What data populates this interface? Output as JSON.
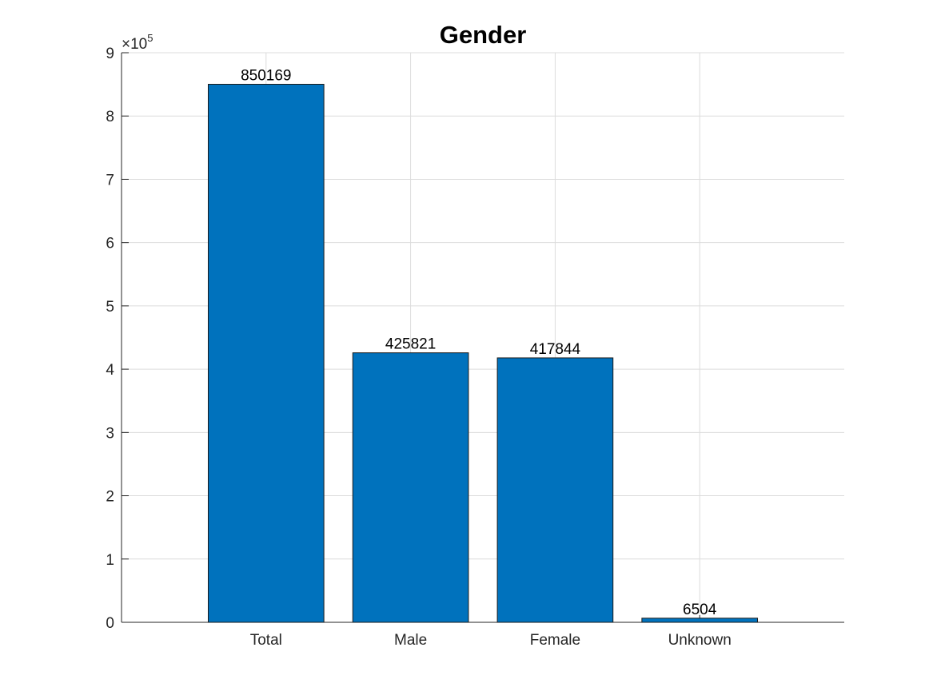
{
  "chart_data": {
    "type": "bar",
    "title": "Gender",
    "categories": [
      "Total",
      "Male",
      "Female",
      "Unknown"
    ],
    "values": [
      850169,
      425821,
      417844,
      6504
    ],
    "data_labels": [
      "850169",
      "425821",
      "417844",
      "6504"
    ],
    "ylim": [
      0,
      900000
    ],
    "yticks": [
      0,
      100000,
      200000,
      300000,
      400000,
      500000,
      600000,
      700000,
      800000,
      900000
    ],
    "ytick_labels": [
      "0",
      "1",
      "2",
      "3",
      "4",
      "5",
      "6",
      "7",
      "8",
      "9"
    ],
    "y_multiplier_base": "×10",
    "y_multiplier_exponent": "5",
    "xlim": [
      0,
      5
    ],
    "grid": true,
    "bar_color": "#0072bd"
  }
}
